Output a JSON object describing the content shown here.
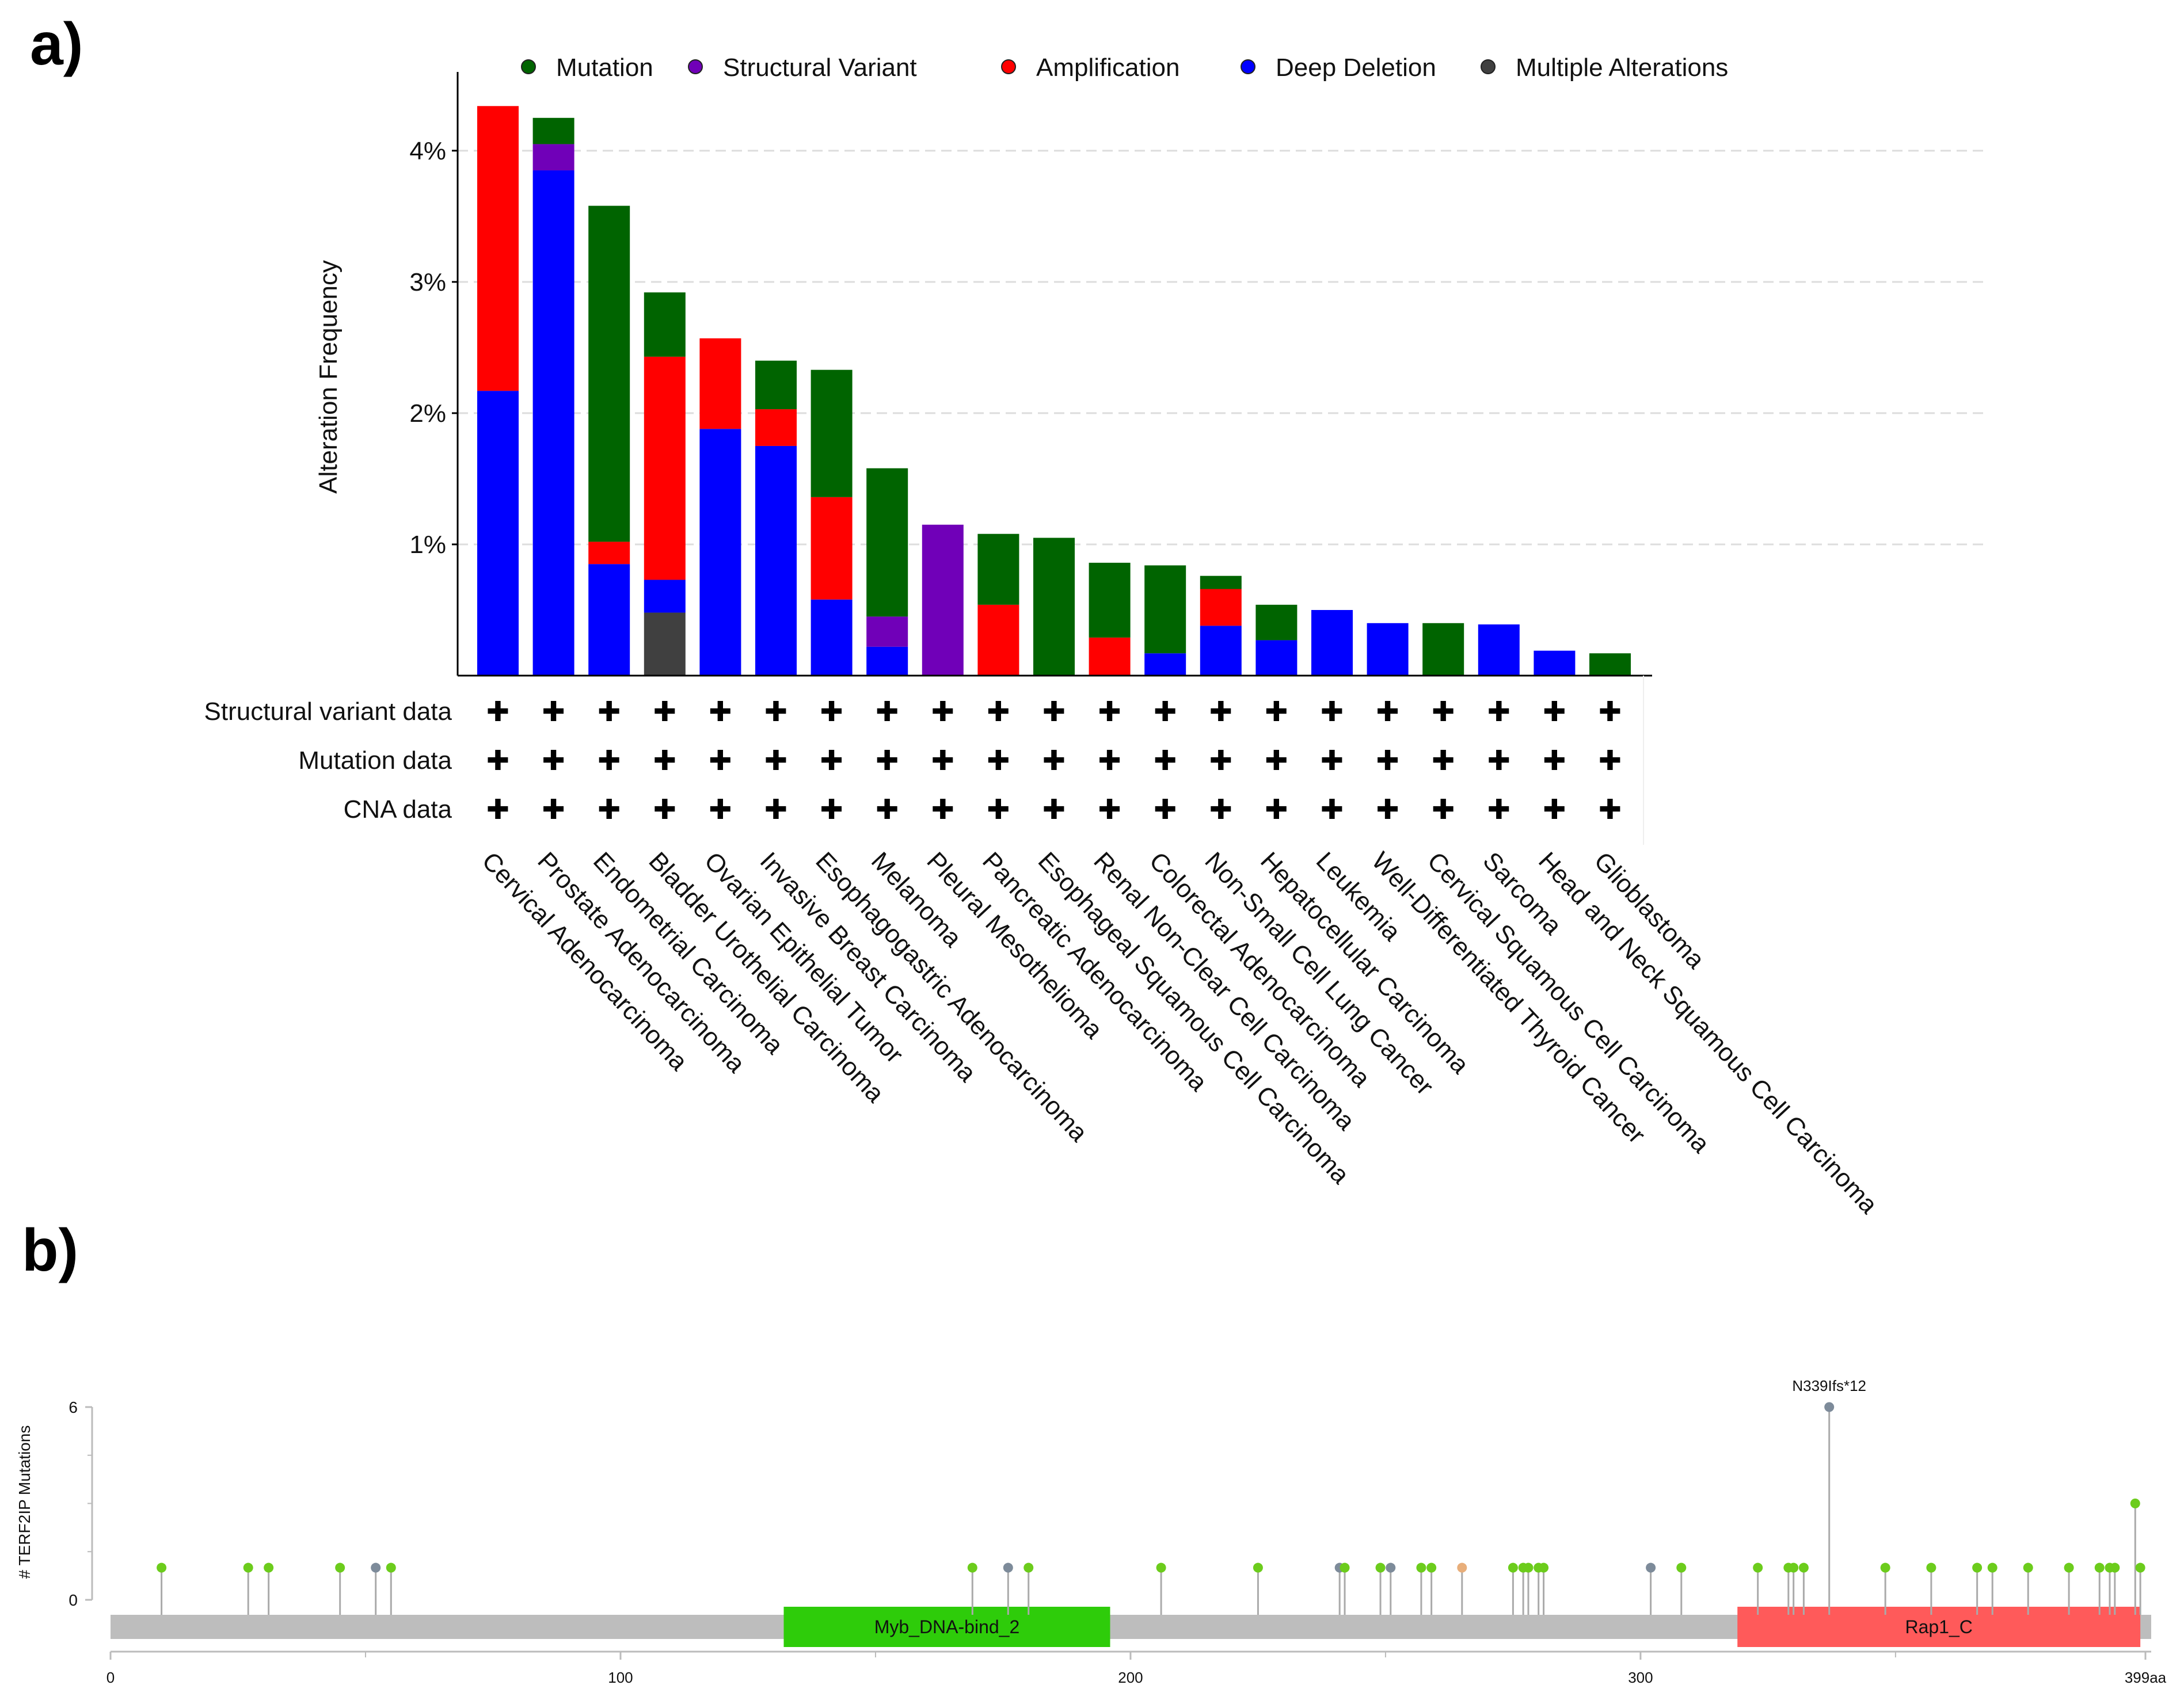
{
  "chart_data": [
    {
      "panel_label": "a)",
      "type": "bar",
      "stacked": true,
      "ylabel": "Alteration Frequency",
      "ylim": [
        0,
        4.6
      ],
      "yticks": [
        "1%",
        "2%",
        "3%",
        "4%"
      ],
      "ytick_values": [
        1,
        2,
        3,
        4
      ],
      "grid": true,
      "legend_position": "top",
      "categories": [
        "Cervical Adenocarcinoma",
        "Prostate Adenocarcinoma",
        "Endometrial Carcinoma",
        "Bladder Urothelial Carcinoma",
        "Ovarian Epithelial Tumor",
        "Invasive Breast Carcinoma",
        "Esophagogastric Adenocarcinoma",
        "Melanoma",
        "Pleural Mesothelioma",
        "Pancreatic Adenocarcinoma",
        "Esophageal Squamous Cell Carcinoma",
        "Renal Non-Clear Cell Carcinoma",
        "Colorectal Adenocarcinoma",
        "Non-Small Cell Lung Cancer",
        "Hepatocellular Carcinoma",
        "Leukemia",
        "Well-Differentiated Thyroid Cancer",
        "Cervical Squamous Cell Carcinoma",
        "Sarcoma",
        "Head and Neck Squamous Cell Carcinoma",
        "Glioblastoma"
      ],
      "series": [
        {
          "name": "Multiple Alterations",
          "color": "#404040",
          "values": [
            0,
            0,
            0,
            0.48,
            0,
            0,
            0,
            0,
            0,
            0,
            0,
            0,
            0,
            0,
            0,
            0,
            0,
            0,
            0,
            0,
            0
          ]
        },
        {
          "name": "Deep Deletion",
          "color": "#0000ff",
          "values": [
            2.17,
            3.85,
            0.85,
            0.25,
            1.88,
            1.75,
            0.58,
            0.22,
            0,
            0,
            0,
            0,
            0.17,
            0.38,
            0.27,
            0.5,
            0.4,
            0,
            0.39,
            0.19,
            0
          ]
        },
        {
          "name": "Amplification",
          "color": "#ff0000",
          "values": [
            2.17,
            0,
            0.17,
            1.7,
            0.69,
            0.28,
            0.78,
            0,
            0,
            0.54,
            0,
            0.29,
            0,
            0.28,
            0,
            0,
            0,
            0,
            0,
            0,
            0
          ]
        },
        {
          "name": "Structural Variant",
          "color": "#7000b8",
          "values": [
            0,
            0.2,
            0,
            0,
            0,
            0,
            0,
            0.23,
            1.15,
            0,
            0,
            0,
            0,
            0,
            0,
            0,
            0,
            0,
            0,
            0,
            0
          ]
        },
        {
          "name": "Mutation",
          "color": "#006400",
          "values": [
            0,
            0.2,
            2.56,
            0.49,
            0,
            0.37,
            0.97,
            1.13,
            0,
            0.54,
            1.05,
            0.57,
            0.67,
            0.1,
            0.27,
            0,
            0,
            0.4,
            0,
            0,
            0.17
          ]
        }
      ],
      "legend_order": [
        "Mutation",
        "Structural Variant",
        "Amplification",
        "Deep Deletion",
        "Multiple Alterations"
      ],
      "data_rows": [
        {
          "label": "Structural variant data",
          "symbol": "✚"
        },
        {
          "label": "Mutation data",
          "symbol": "✚"
        },
        {
          "label": "CNA data",
          "symbol": "✚"
        }
      ]
    },
    {
      "panel_label": "b)",
      "type": "lollipop",
      "ylabel": "# TERF2IP Mutations",
      "ylim": [
        0,
        6
      ],
      "yticks": [
        "0",
        "6"
      ],
      "xlim": [
        0,
        399
      ],
      "xticks": [
        "0",
        "100",
        "200",
        "300",
        "399aa"
      ],
      "xtick_values": [
        0,
        100,
        200,
        300,
        399
      ],
      "domains": [
        {
          "name": "Myb_DNA-bind_2",
          "start": 132,
          "end": 196,
          "color": "#2ecc0a"
        },
        {
          "name": "Rap1_C",
          "start": 319,
          "end": 398,
          "color": "#ff5a5a"
        }
      ],
      "annotation": {
        "label": "N339Ifs*12",
        "position": 337,
        "count": 6
      },
      "mutations": [
        {
          "pos": 10,
          "count": 1,
          "color": "#6ccc1c"
        },
        {
          "pos": 27,
          "count": 1,
          "color": "#6ccc1c"
        },
        {
          "pos": 31,
          "count": 1,
          "color": "#6ccc1c"
        },
        {
          "pos": 45,
          "count": 1,
          "color": "#6ccc1c"
        },
        {
          "pos": 52,
          "count": 1,
          "color": "#7d8b9a"
        },
        {
          "pos": 55,
          "count": 1,
          "color": "#6ccc1c"
        },
        {
          "pos": 169,
          "count": 1,
          "color": "#6ccc1c"
        },
        {
          "pos": 176,
          "count": 1,
          "color": "#7d8b9a"
        },
        {
          "pos": 180,
          "count": 1,
          "color": "#6ccc1c"
        },
        {
          "pos": 206,
          "count": 1,
          "color": "#6ccc1c"
        },
        {
          "pos": 225,
          "count": 1,
          "color": "#6ccc1c"
        },
        {
          "pos": 241,
          "count": 1,
          "color": "#7d8b9a"
        },
        {
          "pos": 242,
          "count": 1,
          "color": "#6ccc1c"
        },
        {
          "pos": 249,
          "count": 1,
          "color": "#6ccc1c"
        },
        {
          "pos": 251,
          "count": 1,
          "color": "#7d8b9a"
        },
        {
          "pos": 257,
          "count": 1,
          "color": "#6ccc1c"
        },
        {
          "pos": 259,
          "count": 1,
          "color": "#6ccc1c"
        },
        {
          "pos": 265,
          "count": 1,
          "color": "#e8ae7a"
        },
        {
          "pos": 275,
          "count": 1,
          "color": "#6ccc1c"
        },
        {
          "pos": 277,
          "count": 1,
          "color": "#6ccc1c"
        },
        {
          "pos": 278,
          "count": 1,
          "color": "#6ccc1c"
        },
        {
          "pos": 280,
          "count": 1,
          "color": "#6ccc1c"
        },
        {
          "pos": 281,
          "count": 1,
          "color": "#6ccc1c"
        },
        {
          "pos": 302,
          "count": 1,
          "color": "#7d8b9a"
        },
        {
          "pos": 308,
          "count": 1,
          "color": "#6ccc1c"
        },
        {
          "pos": 323,
          "count": 1,
          "color": "#6ccc1c"
        },
        {
          "pos": 329,
          "count": 1,
          "color": "#6ccc1c"
        },
        {
          "pos": 330,
          "count": 1,
          "color": "#6ccc1c"
        },
        {
          "pos": 332,
          "count": 1,
          "color": "#6ccc1c"
        },
        {
          "pos": 337,
          "count": 6,
          "color": "#7d8b9a"
        },
        {
          "pos": 348,
          "count": 1,
          "color": "#6ccc1c"
        },
        {
          "pos": 357,
          "count": 1,
          "color": "#6ccc1c"
        },
        {
          "pos": 366,
          "count": 1,
          "color": "#6ccc1c"
        },
        {
          "pos": 369,
          "count": 1,
          "color": "#6ccc1c"
        },
        {
          "pos": 376,
          "count": 1,
          "color": "#6ccc1c"
        },
        {
          "pos": 384,
          "count": 1,
          "color": "#6ccc1c"
        },
        {
          "pos": 390,
          "count": 1,
          "color": "#6ccc1c"
        },
        {
          "pos": 392,
          "count": 1,
          "color": "#6ccc1c"
        },
        {
          "pos": 393,
          "count": 1,
          "color": "#6ccc1c"
        },
        {
          "pos": 397,
          "count": 3,
          "color": "#6ccc1c"
        },
        {
          "pos": 398,
          "count": 1,
          "color": "#6ccc1c"
        }
      ]
    }
  ]
}
